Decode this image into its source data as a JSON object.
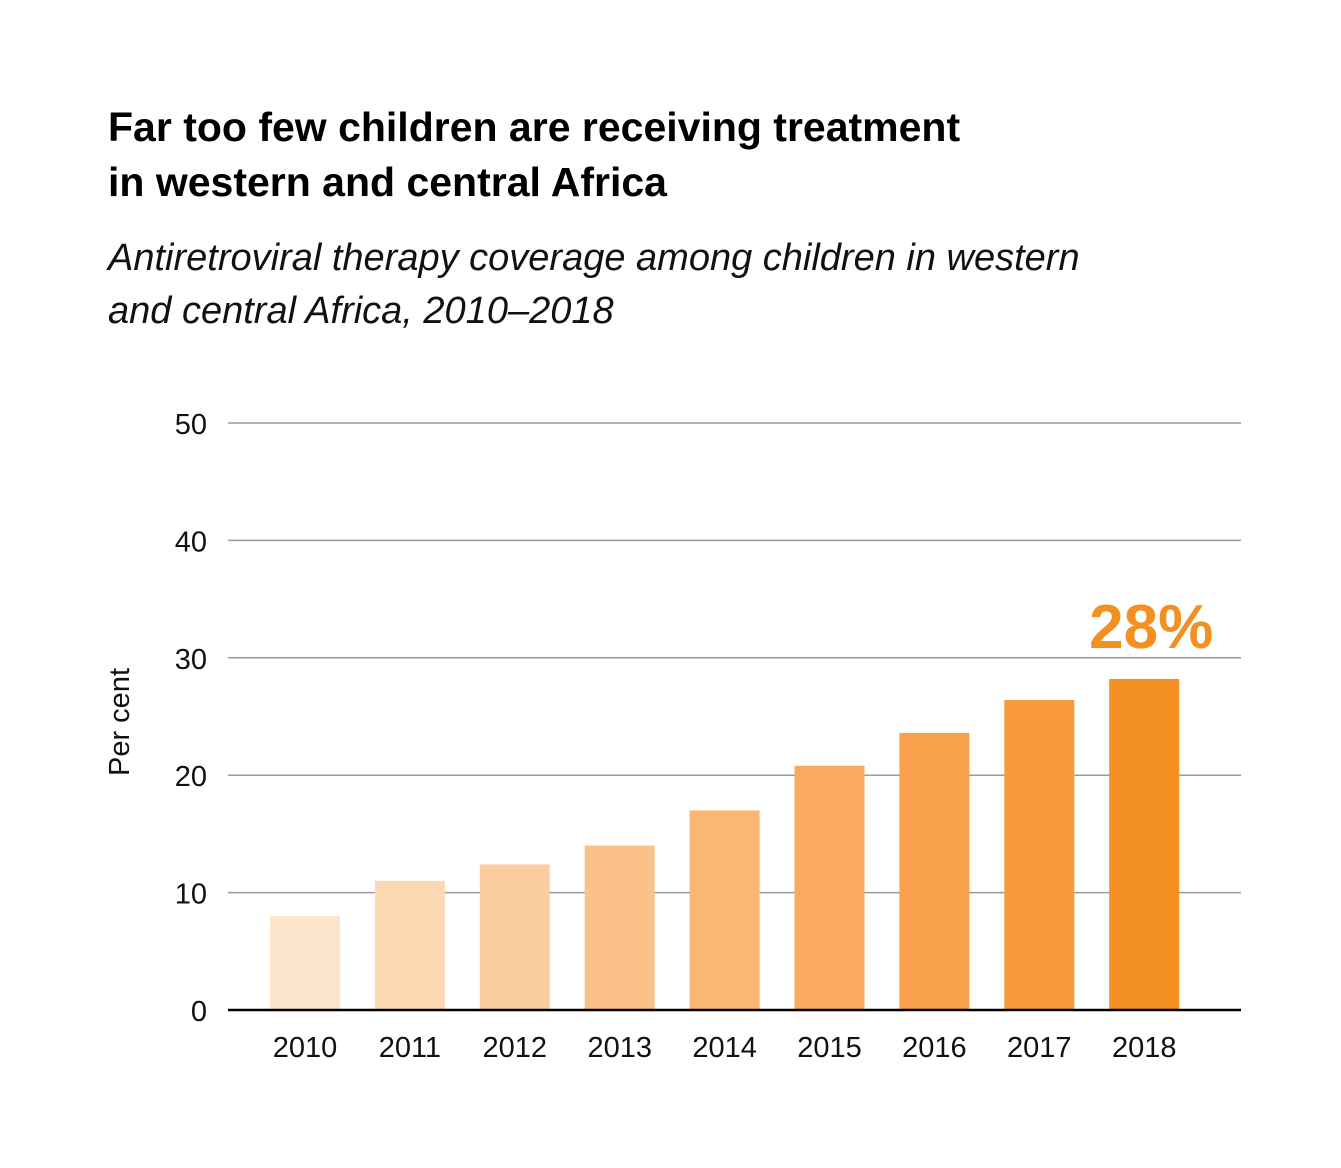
{
  "title_line1": "Far too few children are receiving treatment",
  "title_line2": "in western and central Africa",
  "subtitle_line1": "Antiretroviral therapy coverage among children in western",
  "subtitle_line2": "and central Africa, 2010–2018",
  "chart_data": {
    "type": "bar",
    "categories": [
      "2010",
      "2011",
      "2012",
      "2013",
      "2014",
      "2015",
      "2016",
      "2017",
      "2018"
    ],
    "values": [
      8,
      11,
      12.4,
      14,
      17,
      20.8,
      23.6,
      26.4,
      28.2
    ],
    "ylabel": "Per cent",
    "xlabel": "",
    "ylim": [
      0,
      50
    ],
    "yticks": [
      0,
      10,
      20,
      30,
      40,
      50
    ],
    "grid": true,
    "bar_colors": [
      "#fde5cb",
      "#fdd8b2",
      "#fccd9e",
      "#fcc189",
      "#fbb673",
      "#f9aa5f",
      "#f8a04c",
      "#f69a3a",
      "#f39021"
    ],
    "annotation": {
      "text": "28%",
      "category": "2018",
      "color": "#f39021"
    }
  }
}
